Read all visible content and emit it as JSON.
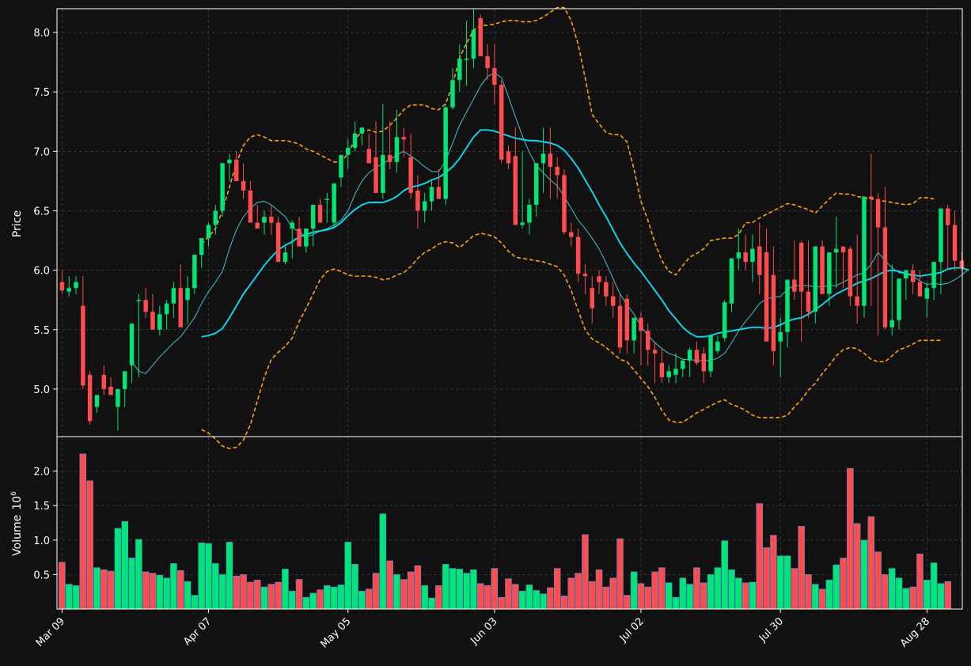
{
  "chart_data": {
    "type": "candlestick",
    "style": {
      "background": "#111111",
      "up_color": "#00e676",
      "down_color": "#ff4d4f",
      "volume_edge_color": "#4a90d9",
      "ma_short_color": "#39c5cf",
      "ma_long_color": "#00e5ff",
      "band_color": "#ffa500",
      "grid": true
    },
    "price_panel": {
      "ylabel": "Price",
      "ylim": [
        4.6,
        8.2
      ],
      "yticks": [
        "5.0",
        "5.5",
        "6.0",
        "6.5",
        "7.0",
        "7.5",
        "8.0"
      ],
      "ytick_values": [
        5.0,
        5.5,
        6.0,
        6.5,
        7.0,
        7.5,
        8.0
      ]
    },
    "volume_panel": {
      "ylabel": "Volume",
      "ylabel_exponent": "10",
      "ylabel_power": "6",
      "ylim": [
        0,
        2.5
      ],
      "yticks": [
        "0.5",
        "1.0",
        "1.5",
        "2.0"
      ],
      "ytick_values": [
        0.5,
        1.0,
        1.5,
        2.0
      ]
    },
    "x_ticks": [
      {
        "label": "Mar 09",
        "index": 0
      },
      {
        "label": "Apr 07",
        "index": 21
      },
      {
        "label": "May 05",
        "index": 41
      },
      {
        "label": "Jun 03",
        "index": 62
      },
      {
        "label": "Jul 02",
        "index": 83
      },
      {
        "label": "Jul 30",
        "index": 103
      },
      {
        "label": "Aug 28",
        "index": 124
      }
    ],
    "ohlc": {
      "open": [
        5.9,
        5.82,
        5.85,
        5.7,
        5.12,
        4.85,
        5.12,
        5.02,
        4.85,
        5.0,
        5.2,
        5.75,
        5.75,
        5.65,
        5.5,
        5.63,
        5.72,
        5.85,
        5.75,
        5.85,
        6.13,
        6.27,
        6.38,
        6.5,
        6.9,
        6.93,
        6.75,
        6.67,
        6.4,
        6.4,
        6.45,
        6.4,
        6.07,
        6.35,
        6.35,
        6.2,
        6.35,
        6.55,
        6.6,
        6.4,
        6.78,
        6.97,
        7.03,
        7.15,
        7.02,
        6.95,
        6.65,
        6.97,
        6.91,
        7.12,
        6.95,
        6.67,
        6.5,
        6.58,
        6.7,
        6.6,
        7.37,
        7.6,
        7.78,
        7.78,
        8.12,
        7.8,
        7.7,
        7.56,
        7.0,
        6.96,
        6.38,
        6.4,
        6.55,
        6.9,
        6.98,
        6.87,
        6.8,
        6.32,
        6.28,
        5.97,
        5.85,
        5.95,
        5.9,
        5.78,
        5.7,
        5.76,
        5.41,
        5.6,
        5.49,
        5.33,
        5.22,
        5.1,
        5.12,
        5.17,
        5.24,
        5.33,
        5.3,
        5.15,
        5.32,
        5.43,
        5.72,
        6.1,
        6.15,
        6.07,
        6.2,
        6.15,
        5.96,
        5.4,
        5.48,
        5.92,
        6.23,
        5.82,
        5.65,
        6.2,
        5.8,
        6.15,
        6.2,
        6.18,
        5.78,
        5.7,
        6.62,
        6.6,
        6.36,
        5.52,
        5.58,
        5.93,
        6.0,
        5.9,
        5.76,
        5.85,
        6.07,
        6.52,
        6.38,
        6.08
      ],
      "high": [
        6.0,
        5.95,
        5.95,
        5.95,
        5.15,
        4.95,
        5.2,
        5.1,
        5.0,
        5.1,
        5.3,
        5.8,
        5.85,
        5.8,
        5.7,
        5.75,
        5.9,
        6.05,
        5.95,
        6.0,
        6.2,
        6.4,
        6.55,
        6.9,
        6.98,
        7.0,
        6.9,
        6.75,
        6.55,
        6.5,
        6.55,
        6.45,
        6.2,
        6.42,
        6.45,
        6.3,
        6.45,
        6.6,
        6.65,
        6.65,
        6.95,
        7.1,
        7.25,
        7.2,
        7.15,
        7.25,
        7.4,
        7.25,
        7.35,
        7.2,
        7.15,
        6.8,
        6.65,
        6.75,
        6.85,
        7.4,
        7.7,
        7.9,
        8.1,
        8.2,
        8.15,
        7.9,
        7.9,
        7.6,
        7.05,
        7.2,
        7.0,
        6.6,
        6.8,
        7.2,
        7.2,
        6.95,
        6.85,
        6.4,
        6.35,
        6.05,
        5.95,
        6.0,
        5.95,
        5.9,
        5.8,
        5.8,
        5.6,
        5.65,
        5.55,
        5.4,
        5.35,
        5.2,
        5.3,
        5.25,
        5.35,
        5.4,
        5.35,
        5.45,
        5.45,
        5.75,
        6.1,
        6.35,
        6.3,
        6.3,
        6.4,
        6.35,
        6.2,
        5.6,
        5.55,
        6.25,
        6.25,
        6.25,
        6.0,
        6.25,
        6.1,
        6.45,
        6.2,
        6.2,
        6.3,
        6.05,
        6.98,
        6.65,
        6.7,
        6.05,
        5.9,
        6.0,
        6.05,
        6.0,
        5.9,
        6.0,
        6.25,
        6.55,
        6.5,
        6.15
      ],
      "low": [
        5.8,
        5.78,
        5.8,
        5.0,
        4.7,
        4.8,
        4.95,
        4.95,
        4.65,
        4.85,
        5.05,
        5.1,
        5.6,
        5.55,
        5.45,
        5.5,
        5.6,
        5.6,
        5.55,
        5.8,
        6.02,
        6.2,
        6.3,
        6.45,
        6.75,
        6.8,
        6.6,
        6.5,
        6.35,
        6.3,
        6.3,
        6.1,
        6.05,
        6.1,
        6.25,
        6.15,
        6.2,
        6.45,
        6.4,
        6.35,
        6.7,
        6.85,
        7.0,
        7.05,
        6.9,
        6.75,
        6.6,
        6.85,
        6.82,
        6.95,
        6.6,
        6.35,
        6.4,
        6.5,
        6.65,
        6.55,
        7.35,
        7.5,
        7.55,
        7.7,
        7.85,
        7.6,
        7.4,
        6.9,
        6.85,
        6.4,
        6.35,
        6.3,
        6.45,
        6.65,
        6.6,
        6.6,
        6.3,
        6.2,
        5.9,
        5.8,
        5.55,
        5.8,
        5.7,
        5.6,
        5.3,
        5.3,
        5.3,
        5.2,
        5.2,
        5.05,
        5.05,
        5.05,
        5.05,
        5.1,
        5.1,
        5.2,
        5.05,
        5.1,
        5.3,
        5.4,
        5.65,
        6.0,
        6.0,
        5.9,
        5.8,
        5.5,
        5.2,
        5.1,
        5.35,
        5.75,
        5.4,
        5.6,
        5.55,
        5.8,
        5.7,
        5.85,
        5.85,
        5.7,
        5.55,
        5.6,
        5.7,
        5.45,
        5.5,
        5.45,
        5.5,
        5.75,
        5.8,
        5.85,
        5.6,
        5.75,
        5.8,
        6.0,
        6.0,
        6.0
      ],
      "close": [
        5.83,
        5.85,
        5.9,
        5.03,
        4.73,
        4.95,
        5.0,
        4.95,
        5.0,
        5.15,
        5.55,
        5.75,
        5.65,
        5.5,
        5.63,
        5.72,
        5.85,
        5.52,
        5.85,
        6.13,
        6.27,
        6.38,
        6.5,
        6.9,
        6.93,
        6.75,
        6.67,
        6.4,
        6.35,
        6.45,
        6.4,
        6.07,
        6.15,
        6.4,
        6.2,
        6.35,
        6.55,
        6.4,
        6.6,
        6.73,
        6.97,
        7.03,
        7.15,
        7.2,
        6.9,
        6.65,
        6.97,
        6.91,
        7.12,
        7.1,
        6.65,
        6.5,
        6.58,
        6.7,
        6.6,
        7.37,
        7.6,
        7.78,
        7.78,
        8.02,
        7.8,
        7.7,
        7.56,
        6.93,
        6.9,
        6.38,
        6.4,
        6.55,
        6.9,
        6.98,
        6.87,
        6.8,
        6.32,
        6.28,
        5.97,
        5.95,
        5.68,
        5.9,
        5.78,
        5.7,
        5.35,
        5.41,
        5.6,
        5.49,
        5.33,
        5.3,
        5.1,
        5.15,
        5.17,
        5.24,
        5.33,
        5.22,
        5.15,
        5.45,
        5.4,
        5.73,
        6.1,
        6.15,
        6.07,
        6.18,
        5.96,
        5.4,
        5.32,
        5.48,
        5.92,
        5.82,
        5.82,
        5.65,
        6.2,
        5.8,
        6.15,
        6.18,
        6.15,
        5.78,
        5.7,
        6.62,
        6.6,
        6.36,
        5.52,
        5.58,
        5.93,
        6.0,
        5.9,
        5.78,
        5.85,
        6.07,
        6.52,
        6.38,
        6.08,
        6.02
      ]
    },
    "volume": [
      0.68,
      0.36,
      0.34,
      2.25,
      1.86,
      0.6,
      0.57,
      0.55,
      1.17,
      1.27,
      0.74,
      1.01,
      0.54,
      0.52,
      0.49,
      0.45,
      0.66,
      0.56,
      0.4,
      0.2,
      0.96,
      0.95,
      0.66,
      0.5,
      0.97,
      0.48,
      0.5,
      0.39,
      0.42,
      0.32,
      0.36,
      0.39,
      0.58,
      0.26,
      0.43,
      0.17,
      0.23,
      0.28,
      0.34,
      0.32,
      0.35,
      0.97,
      0.65,
      0.26,
      0.29,
      0.52,
      1.38,
      0.7,
      0.5,
      0.43,
      0.54,
      0.63,
      0.34,
      0.16,
      0.34,
      0.65,
      0.59,
      0.58,
      0.52,
      0.57,
      0.37,
      0.34,
      0.59,
      0.17,
      0.44,
      0.36,
      0.26,
      0.35,
      0.27,
      0.22,
      0.31,
      0.59,
      0.19,
      0.45,
      0.52,
      1.08,
      0.4,
      0.57,
      0.32,
      0.45,
      1.02,
      0.2,
      0.54,
      0.37,
      0.32,
      0.54,
      0.6,
      0.38,
      0.17,
      0.45,
      0.36,
      0.6,
      0.38,
      0.5,
      0.6,
      0.99,
      0.57,
      0.45,
      0.38,
      0.39,
      1.53,
      0.89,
      1.07,
      0.77,
      0.77,
      0.59,
      1.2,
      0.5,
      0.36,
      0.29,
      0.42,
      0.64,
      0.74,
      2.04,
      1.24,
      1.0,
      1.34,
      0.83,
      0.5,
      0.59,
      0.45,
      0.3,
      0.32,
      0.8,
      0.42,
      0.67,
      0.37,
      0.4
    ],
    "ma_short": [
      null,
      null,
      null,
      null,
      null,
      null,
      null,
      null,
      null,
      null,
      5.23,
      5.15,
      5.13,
      5.2,
      5.27,
      5.33,
      5.39,
      5.44,
      5.52,
      5.6,
      5.72,
      5.82,
      5.9,
      5.99,
      6.18,
      6.34,
      6.45,
      6.52,
      6.57,
      6.58,
      6.55,
      6.5,
      6.45,
      6.36,
      6.32,
      6.28,
      6.3,
      6.33,
      6.35,
      6.38,
      6.42,
      6.5,
      6.64,
      6.75,
      6.82,
      6.86,
      6.9,
      6.93,
      6.97,
      7.0,
      6.96,
      6.92,
      6.87,
      6.83,
      6.83,
      6.92,
      7.07,
      7.22,
      7.33,
      7.44,
      7.55,
      7.63,
      7.66,
      7.62,
      7.46,
      7.29,
      7.13,
      6.99,
      6.88,
      6.82,
      6.76,
      6.71,
      6.62,
      6.52,
      6.42,
      6.35,
      6.27,
      6.18,
      6.06,
      5.93,
      5.8,
      5.71,
      5.63,
      5.53,
      5.45,
      5.39,
      5.34,
      5.3,
      5.28,
      5.25,
      5.25,
      5.24,
      5.24,
      5.24,
      5.26,
      5.3,
      5.39,
      5.49,
      5.57,
      5.64,
      5.72,
      5.76,
      5.77,
      5.78,
      5.84,
      5.87,
      5.87,
      5.87,
      5.86,
      5.86,
      5.87,
      5.87,
      5.9,
      5.93,
      5.96,
      5.98,
      6.05,
      6.15,
      6.08,
      6.02,
      5.98,
      5.97,
      5.95,
      5.91,
      5.88,
      5.89,
      5.88,
      5.89,
      5.92,
      5.96,
      6.01
    ],
    "ma_long": [
      null,
      null,
      null,
      null,
      null,
      null,
      null,
      null,
      null,
      null,
      null,
      null,
      null,
      null,
      null,
      null,
      null,
      null,
      null,
      null,
      5.44,
      5.45,
      5.47,
      5.51,
      5.6,
      5.7,
      5.8,
      5.88,
      5.96,
      6.04,
      6.11,
      6.17,
      6.21,
      6.24,
      6.28,
      6.3,
      6.32,
      6.33,
      6.34,
      6.36,
      6.4,
      6.46,
      6.51,
      6.55,
      6.57,
      6.57,
      6.57,
      6.59,
      6.62,
      6.67,
      6.7,
      6.71,
      6.73,
      6.76,
      6.78,
      6.82,
      6.87,
      6.94,
      7.03,
      7.12,
      7.18,
      7.18,
      7.17,
      7.15,
      7.13,
      7.11,
      7.1,
      7.09,
      7.09,
      7.08,
      7.07,
      7.05,
      7.01,
      6.94,
      6.86,
      6.76,
      6.66,
      6.55,
      6.45,
      6.34,
      6.23,
      6.14,
      6.06,
      5.99,
      5.91,
      5.83,
      5.75,
      5.66,
      5.59,
      5.52,
      5.47,
      5.44,
      5.44,
      5.45,
      5.47,
      5.48,
      5.49,
      5.5,
      5.51,
      5.52,
      5.52,
      5.51,
      5.52,
      5.54,
      5.57,
      5.59,
      5.6,
      5.63,
      5.67,
      5.71,
      5.76,
      5.8,
      5.83,
      5.86,
      5.89,
      5.91,
      5.93,
      5.96,
      5.99,
      6.0,
      5.99,
      5.97,
      5.96,
      5.95,
      5.96,
      5.97,
      5.98,
      6.01,
      6.02,
      6.02,
      6.0
    ],
    "band_upper": [
      null,
      null,
      null,
      null,
      null,
      null,
      null,
      null,
      null,
      null,
      null,
      null,
      null,
      null,
      null,
      null,
      null,
      null,
      null,
      null,
      6.22,
      6.28,
      6.35,
      6.5,
      6.7,
      6.9,
      7.05,
      7.12,
      7.14,
      7.12,
      7.09,
      7.09,
      7.09,
      7.08,
      7.06,
      7.02,
      7.0,
      6.97,
      6.94,
      6.91,
      6.91,
      6.98,
      7.1,
      7.17,
      7.18,
      7.16,
      7.17,
      7.22,
      7.28,
      7.35,
      7.39,
      7.39,
      7.39,
      7.36,
      7.35,
      7.4,
      7.56,
      7.79,
      7.91,
      8.02,
      8.06,
      8.06,
      8.07,
      8.09,
      8.1,
      8.1,
      8.09,
      8.09,
      8.1,
      8.13,
      8.17,
      8.21,
      8.21,
      8.1,
      7.9,
      7.62,
      7.31,
      7.23,
      7.16,
      7.14,
      7.14,
      7.08,
      6.85,
      6.58,
      6.42,
      6.23,
      6.08,
      5.99,
      5.96,
      6.04,
      6.11,
      6.14,
      6.18,
      6.25,
      6.26,
      6.27,
      6.27,
      6.3,
      6.4,
      6.4,
      6.44,
      6.47,
      6.5,
      6.53,
      6.56,
      6.55,
      6.53,
      6.51,
      6.48,
      6.54,
      6.6,
      6.65,
      6.64,
      6.64,
      6.62,
      6.61,
      6.6,
      6.59,
      6.58,
      6.57,
      6.56,
      6.55,
      6.56,
      6.61,
      6.61,
      6.6
    ],
    "band_lower": [
      null,
      null,
      null,
      null,
      null,
      null,
      null,
      null,
      null,
      null,
      null,
      null,
      null,
      null,
      null,
      null,
      null,
      null,
      null,
      null,
      4.66,
      4.63,
      4.58,
      4.52,
      4.5,
      4.51,
      4.57,
      4.7,
      4.9,
      5.1,
      5.25,
      5.31,
      5.36,
      5.43,
      5.57,
      5.68,
      5.8,
      5.92,
      5.99,
      6.01,
      5.99,
      5.96,
      5.95,
      5.95,
      5.95,
      5.94,
      5.92,
      5.93,
      5.96,
      5.98,
      6.03,
      6.1,
      6.15,
      6.18,
      6.22,
      6.24,
      6.23,
      6.19,
      6.24,
      6.29,
      6.31,
      6.3,
      6.28,
      6.23,
      6.16,
      6.11,
      6.1,
      6.09,
      6.08,
      6.07,
      6.05,
      6.03,
      5.96,
      5.83,
      5.66,
      5.5,
      5.42,
      5.39,
      5.35,
      5.3,
      5.25,
      5.23,
      5.16,
      5.09,
      5.02,
      4.93,
      4.82,
      4.74,
      4.72,
      4.72,
      4.76,
      4.8,
      4.83,
      4.86,
      4.89,
      4.91,
      4.87,
      4.85,
      4.82,
      4.78,
      4.76,
      4.76,
      4.76,
      4.76,
      4.78,
      4.85,
      4.91,
      4.99,
      5.05,
      5.13,
      5.2,
      5.28,
      5.33,
      5.35,
      5.34,
      5.3,
      5.25,
      5.23,
      5.23,
      5.28,
      5.33,
      5.35,
      5.38,
      5.41,
      5.41,
      5.41,
      5.41
    ]
  }
}
